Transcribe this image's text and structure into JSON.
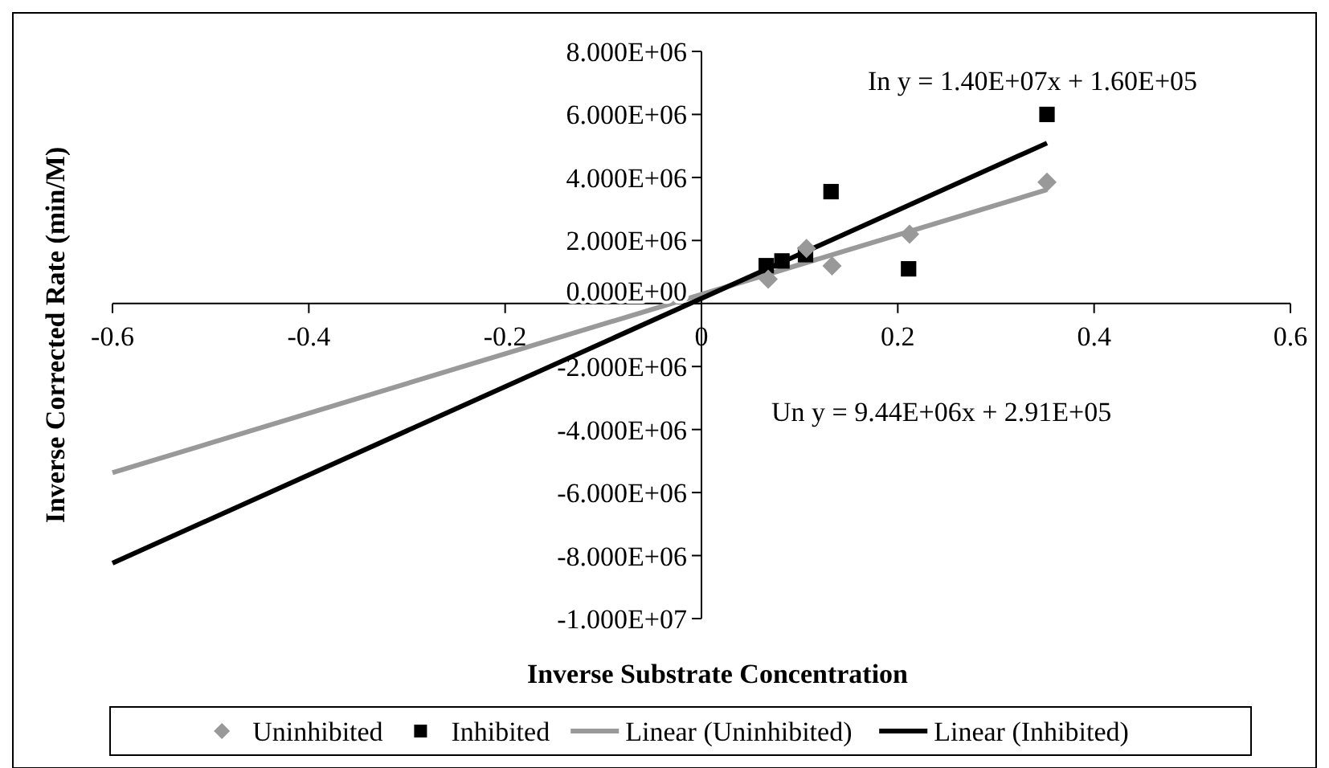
{
  "chart_data": {
    "type": "scatter",
    "xlabel": "Inverse Substrate Concentration",
    "ylabel": "Inverse Corrected Rate (min/M)",
    "xlim": [
      -0.6,
      0.6
    ],
    "xticks": [
      -0.6,
      -0.4,
      -0.2,
      0,
      0.2,
      0.4,
      0.6
    ],
    "ylim": [
      -10000000,
      8000000
    ],
    "yticks": [
      {
        "value": 8000000,
        "label": "8.000E+06"
      },
      {
        "value": 6000000,
        "label": "6.000E+06"
      },
      {
        "value": 4000000,
        "label": "4.000E+06"
      },
      {
        "value": 2000000,
        "label": "2.000E+06"
      },
      {
        "value": 0,
        "label": "0.000E+00"
      },
      {
        "value": -2000000,
        "label": "-2.000E+06"
      },
      {
        "value": -4000000,
        "label": "-4.000E+06"
      },
      {
        "value": -6000000,
        "label": "-6.000E+06"
      },
      {
        "value": -8000000,
        "label": "-8.000E+06"
      },
      {
        "value": -10000000,
        "label": "-1.000E+07"
      }
    ],
    "grid": false,
    "legend": "bottom",
    "series": [
      {
        "name": "Uninhibited",
        "marker": "diamond",
        "color": "#999999",
        "x": [
          0.068,
          0.107,
          0.133,
          0.212,
          0.352
        ],
        "values": [
          770000,
          1750000,
          1190000,
          2200000,
          3850000
        ]
      },
      {
        "name": "Inhibited",
        "marker": "square",
        "color": "#000000",
        "x": [
          0.066,
          0.082,
          0.106,
          0.132,
          0.211,
          0.352
        ],
        "values": [
          1200000,
          1350000,
          1550000,
          3550000,
          1100000,
          6000000
        ]
      },
      {
        "name": "Linear (Uninhibited)",
        "type": "line",
        "marker": "none",
        "line_style": "solid",
        "color": "#999999",
        "x": [
          -0.6,
          0.352
        ],
        "values": [
          -5370000,
          3610000
        ]
      },
      {
        "name": "Linear (Inhibited)",
        "type": "line",
        "marker": "none",
        "line_style": "solid",
        "color": "#000000",
        "x": [
          -0.6,
          0.352
        ],
        "values": [
          -8240000,
          5090000
        ]
      }
    ],
    "annotations": [
      "In y = 1.40E+07x + 1.60E+05",
      "Un y = 9.44E+06x + 2.91E+05"
    ]
  }
}
